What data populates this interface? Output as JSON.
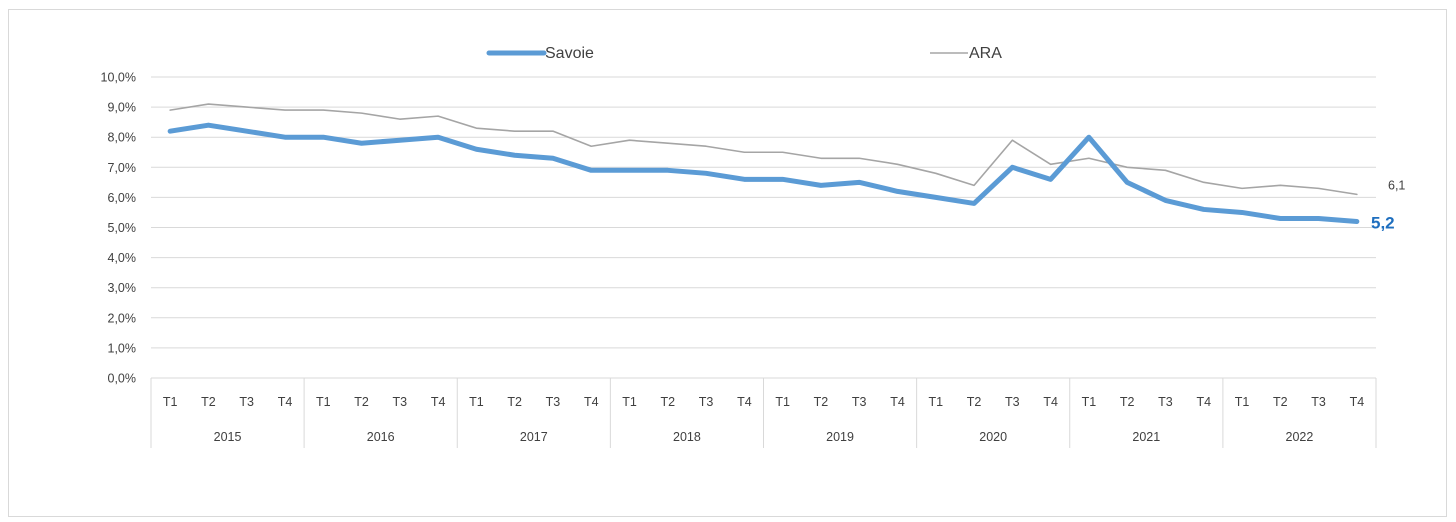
{
  "chart_data": {
    "type": "line",
    "title": "",
    "xlabel": "",
    "ylabel": "",
    "ylim": [
      0,
      10
    ],
    "y_tick_labels": [
      "0,0%",
      "1,0%",
      "2,0%",
      "3,0%",
      "4,0%",
      "5,0%",
      "6,0%",
      "7,0%",
      "8,0%",
      "9,0%",
      "10,0%"
    ],
    "grid": true,
    "legend_position": "top",
    "years": [
      "2015",
      "2016",
      "2017",
      "2018",
      "2019",
      "2020",
      "2021",
      "2022"
    ],
    "quarters": [
      "T1",
      "T2",
      "T3",
      "T4"
    ],
    "series": [
      {
        "name": "Savoie",
        "color": "#5b9bd5",
        "end_label": "5,2",
        "end_label_color": "#1f6fbf",
        "values": [
          8.2,
          8.4,
          8.2,
          8.0,
          8.0,
          7.8,
          7.9,
          8.0,
          7.6,
          7.4,
          7.3,
          6.9,
          6.9,
          6.9,
          6.8,
          6.6,
          6.6,
          6.4,
          6.5,
          6.2,
          6.0,
          5.8,
          7.0,
          6.6,
          8.0,
          6.5,
          5.9,
          5.6,
          5.5,
          5.3,
          5.3,
          5.2
        ]
      },
      {
        "name": "ARA",
        "color": "#a5a5a5",
        "end_label": "6,1",
        "end_label_color": "#404040",
        "values": [
          8.9,
          9.1,
          9.0,
          8.9,
          8.9,
          8.8,
          8.6,
          8.7,
          8.3,
          8.2,
          8.2,
          7.7,
          7.9,
          7.8,
          7.7,
          7.5,
          7.5,
          7.3,
          7.3,
          7.1,
          6.8,
          6.4,
          7.9,
          7.1,
          7.3,
          7.0,
          6.9,
          6.5,
          6.3,
          6.4,
          6.3,
          6.1
        ]
      }
    ]
  }
}
